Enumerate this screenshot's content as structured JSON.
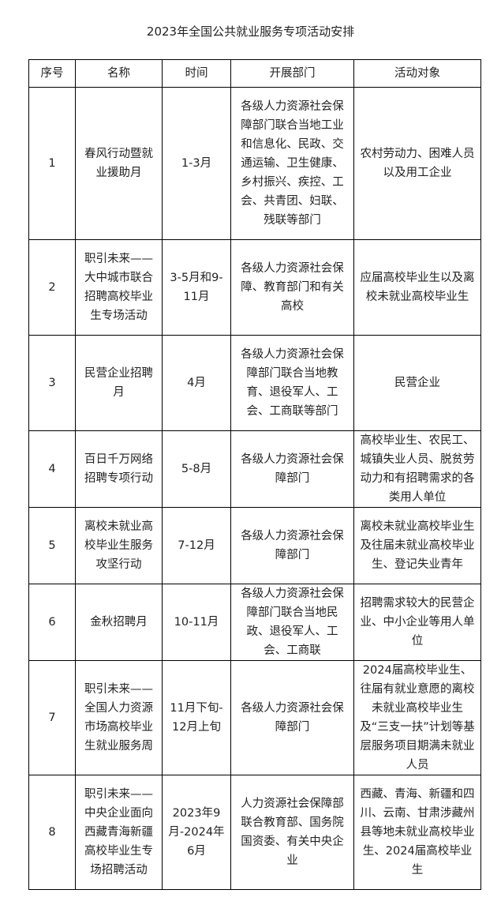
{
  "title": "2023年全国公共就业服务专项活动安排",
  "headers": [
    "序号",
    "名称",
    "时间",
    "开展部门",
    "活动对象"
  ],
  "rows": [
    {
      "no": "1",
      "name": "春风行动暨就业援助月",
      "time": "1-3月",
      "dept": "各级人力资源社会保障部门联合当地工业和信息化、民政、交通运输、卫生健康、乡村振兴、疾控、工会、共青团、妇联、残联等部门",
      "target": "农村劳动力、困难人员以及用工企业"
    },
    {
      "no": "2",
      "name": "职引未来——大中城市联合招聘高校毕业生专场活动",
      "time": "3-5月和9-11月",
      "dept": "各级人力资源社会保障、教育部门和有关高校",
      "target": "应届高校毕业生以及离校未就业高校毕业生"
    },
    {
      "no": "3",
      "name": "民营企业招聘月",
      "time": "4月",
      "dept": "各级人力资源社会保障部门联合当地教育、退役军人、工会、工商联等部门",
      "target": "民营企业"
    },
    {
      "no": "4",
      "name": "百日千万网络招聘专项行动",
      "time": "5-8月",
      "dept": "各级人力资源社会保障部门",
      "target": "高校毕业生、农民工、城镇失业人员、脱贫劳动力和有招聘需求的各类用人单位"
    },
    {
      "no": "5",
      "name": "离校未就业高校毕业生服务攻坚行动",
      "time": "7-12月",
      "dept": "各级人力资源社会保障部门",
      "target": "离校未就业高校毕业生及往届未就业高校毕业生、登记失业青年"
    },
    {
      "no": "6",
      "name": "金秋招聘月",
      "time": "10-11月",
      "dept": "各级人力资源社会保障部门联合当地民政、退役军人、工会、工商联",
      "target": "招聘需求较大的民营企业、中小企业等用人单位"
    },
    {
      "no": "7",
      "name": "职引未来——全国人力资源市场高校毕业生就业服务周",
      "time": "11月下旬-12月上旬",
      "dept": "各级人力资源社会保障部门",
      "target": "2024届高校毕业生、往届有就业意愿的离校未就业高校毕业生及“三支一扶”计划等基层服务项目期满未就业人员"
    },
    {
      "no": "8",
      "name": "职引未来——中央企业面向西藏青海新疆高校毕业生专场招聘活动",
      "time": "2023年9月-2024年6月",
      "dept": "人力资源社会保障部联合教育部、国务院国资委、有关中央企业",
      "target": "西藏、青海、新疆和四川、云南、甘肃涉藏州县等地未就业高校毕业生、2024届高校毕业生"
    }
  ]
}
